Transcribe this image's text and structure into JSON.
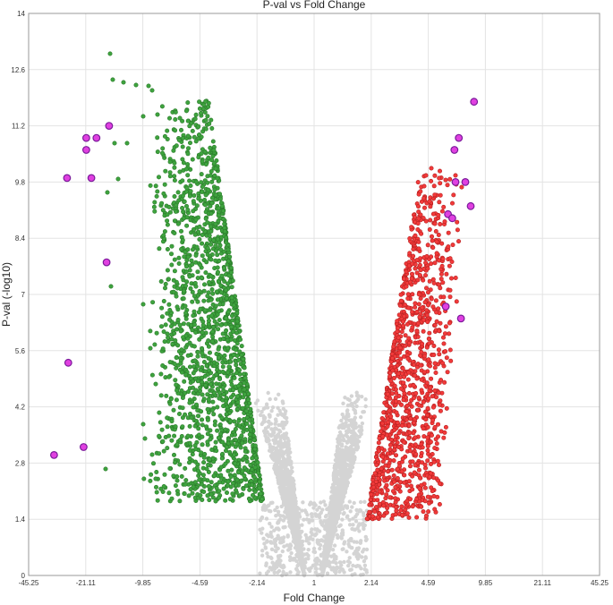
{
  "chart_data": {
    "type": "scatter",
    "title": "P-val vs Fold Change",
    "xlabel": "Fold Change",
    "ylabel": "P-val (-log10)",
    "x_tick_labels": [
      "-45.25",
      "-21.11",
      "-9.85",
      "-4.59",
      "-2.14",
      "1",
      "2.14",
      "4.59",
      "9.85",
      "21.11",
      "45.25"
    ],
    "y_tick_labels": [
      "0",
      "1.4",
      "2.8",
      "4.2",
      "5.6",
      "7",
      "8.4",
      "9.8",
      "11.2",
      "12.6",
      "14"
    ],
    "ylim": [
      0,
      14
    ],
    "grid": true,
    "colors": {
      "down": "#3ea33e",
      "down_edge": "#2b7a2b",
      "up": "#f23a3a",
      "up_edge": "#b52020",
      "ns": "#d4d4d4",
      "highlight_fill": "#e040e0",
      "highlight_ring": "#7a1a9a"
    },
    "highlighted": [
      {
        "x": -34.5,
        "y": 3.0
      },
      {
        "x": -22.0,
        "y": 3.2
      },
      {
        "x": -28.5,
        "y": 5.3
      },
      {
        "x": -29.0,
        "y": 9.9
      },
      {
        "x": -20.0,
        "y": 9.9
      },
      {
        "x": -17.0,
        "y": 7.8
      },
      {
        "x": -21.0,
        "y": 10.6
      },
      {
        "x": -21.0,
        "y": 10.9
      },
      {
        "x": -19.0,
        "y": 10.9
      },
      {
        "x": -16.5,
        "y": 11.2
      },
      {
        "x": 6.2,
        "y": 6.7
      },
      {
        "x": 7.6,
        "y": 6.4
      },
      {
        "x": 6.4,
        "y": 9.0
      },
      {
        "x": 6.8,
        "y": 8.9
      },
      {
        "x": 7.1,
        "y": 9.8
      },
      {
        "x": 8.0,
        "y": 9.8
      },
      {
        "x": 8.5,
        "y": 9.2
      },
      {
        "x": 7.0,
        "y": 10.6
      },
      {
        "x": 7.4,
        "y": 10.9
      },
      {
        "x": 8.8,
        "y": 11.8
      }
    ]
  }
}
